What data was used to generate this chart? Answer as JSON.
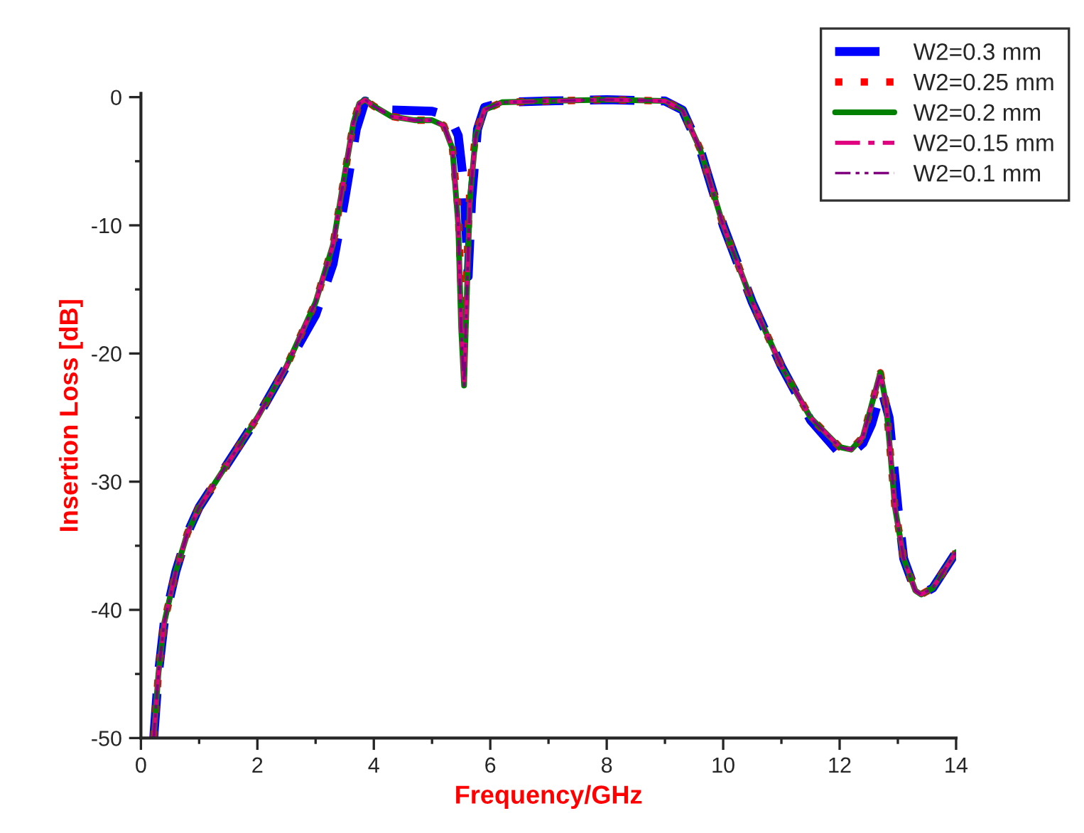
{
  "chart_data": {
    "type": "line",
    "xlabel": "Frequency/GHz",
    "ylabel": "Insertion Loss [dB]",
    "xlim": [
      0,
      14
    ],
    "ylim": [
      -50,
      0.3
    ],
    "xticks": [
      0,
      2,
      4,
      6,
      8,
      10,
      12,
      14
    ],
    "yticks": [
      -50,
      -40,
      -30,
      -20,
      -10,
      0
    ],
    "grid": false,
    "legend": "top right",
    "marker": "none",
    "series": [
      {
        "name": "W2=0.3 mm",
        "color": "#0000ff",
        "line_style": "dashed",
        "x": [
          0.22,
          0.3,
          0.4,
          0.6,
          0.8,
          1.0,
          1.5,
          2.0,
          2.5,
          3.0,
          3.3,
          3.5,
          3.7,
          3.85,
          4.0,
          4.3,
          5.0,
          5.3,
          5.45,
          5.55,
          5.62,
          5.68,
          5.78,
          5.9,
          6.2,
          7,
          8,
          9,
          9.3,
          9.6,
          10,
          10.5,
          11,
          11.5,
          12,
          12.15,
          12.4,
          12.55,
          12.72,
          12.85,
          13.0,
          13.1,
          13.3,
          13.4,
          13.6,
          14
        ],
        "values": [
          -50,
          -45,
          -41,
          -37,
          -34,
          -32,
          -28.5,
          -25,
          -21,
          -17,
          -13,
          -8,
          -2.5,
          -0.3,
          -0.6,
          -1.0,
          -1.1,
          -1.5,
          -3,
          -7,
          -14,
          -8,
          -2.5,
          -0.8,
          -0.4,
          -0.3,
          -0.2,
          -0.3,
          -1,
          -4,
          -10,
          -16,
          -21,
          -25.2,
          -27.8,
          -28,
          -27,
          -25.5,
          -22.8,
          -25,
          -32,
          -36,
          -38.5,
          -38.8,
          -38.3,
          -35.5
        ]
      },
      {
        "name": "W2=0.25 mm",
        "color": "#ff0000",
        "line_style": "dotted",
        "x": [
          0.22,
          0.3,
          0.4,
          0.6,
          0.8,
          1.0,
          1.5,
          2.0,
          2.5,
          3.0,
          3.3,
          3.5,
          3.65,
          3.75,
          3.85,
          4.0,
          4.3,
          4.7,
          5.0,
          5.2,
          5.35,
          5.45,
          5.5,
          5.55,
          5.6,
          5.65,
          5.75,
          5.9,
          6.2,
          7,
          8,
          9,
          9.3,
          9.6,
          10,
          10.5,
          11,
          11.5,
          12,
          12.2,
          12.4,
          12.55,
          12.7,
          12.8,
          12.95,
          13.1,
          13.3,
          13.4,
          13.6,
          14
        ],
        "values": [
          -50,
          -45,
          -41,
          -37,
          -34,
          -32,
          -28.5,
          -25,
          -21,
          -16,
          -11.5,
          -6,
          -2,
          -0.5,
          -0.2,
          -0.7,
          -1.5,
          -1.8,
          -1.8,
          -2.2,
          -4,
          -9,
          -15,
          -18,
          -13,
          -7,
          -2.8,
          -1,
          -0.4,
          -0.3,
          -0.2,
          -0.3,
          -1,
          -4,
          -10,
          -16,
          -21,
          -25,
          -27.3,
          -27.5,
          -26.5,
          -24,
          -21.5,
          -24,
          -32,
          -36,
          -38.5,
          -38.8,
          -38.3,
          -35.5
        ]
      },
      {
        "name": "W2=0.2 mm",
        "color": "#008000",
        "line_style": "solid",
        "x": [
          0.22,
          0.3,
          0.4,
          0.6,
          0.8,
          1.0,
          1.5,
          2.0,
          2.5,
          3.0,
          3.3,
          3.5,
          3.65,
          3.75,
          3.85,
          4.0,
          4.3,
          4.7,
          5.0,
          5.2,
          5.35,
          5.45,
          5.5,
          5.55,
          5.6,
          5.65,
          5.75,
          5.9,
          6.2,
          7,
          8,
          9,
          9.3,
          9.6,
          10,
          10.5,
          11,
          11.5,
          12,
          12.2,
          12.4,
          12.55,
          12.7,
          12.8,
          12.95,
          13.1,
          13.3,
          13.4,
          13.6,
          14
        ],
        "values": [
          -50,
          -45,
          -41,
          -37,
          -34,
          -32,
          -28.5,
          -25,
          -21,
          -16,
          -11.5,
          -6,
          -2,
          -0.5,
          -0.2,
          -0.7,
          -1.5,
          -1.8,
          -1.8,
          -2.2,
          -4,
          -10,
          -18,
          -22.5,
          -15,
          -8,
          -3,
          -1,
          -0.4,
          -0.3,
          -0.2,
          -0.3,
          -1,
          -4,
          -10,
          -16,
          -21,
          -25,
          -27.3,
          -27.5,
          -26.5,
          -24,
          -21.5,
          -24,
          -32,
          -36,
          -38.5,
          -38.8,
          -38.3,
          -35.5
        ]
      },
      {
        "name": "W2=0.15 mm",
        "color": "#e0007f",
        "line_style": "dashdot",
        "x": [
          0.22,
          0.3,
          0.4,
          0.6,
          0.8,
          1.0,
          1.5,
          2.0,
          2.5,
          3.0,
          3.3,
          3.5,
          3.65,
          3.75,
          3.85,
          4.0,
          4.3,
          4.7,
          5.0,
          5.2,
          5.35,
          5.45,
          5.5,
          5.55,
          5.6,
          5.65,
          5.75,
          5.9,
          6.2,
          7,
          8,
          9,
          9.3,
          9.6,
          10,
          10.5,
          11,
          11.5,
          12,
          12.2,
          12.4,
          12.55,
          12.7,
          12.8,
          12.95,
          13.1,
          13.3,
          13.4,
          13.6,
          14
        ],
        "values": [
          -50,
          -45,
          -41,
          -37,
          -34,
          -32,
          -28.5,
          -25,
          -21,
          -16,
          -11.5,
          -6,
          -2,
          -0.5,
          -0.2,
          -0.7,
          -1.5,
          -1.8,
          -1.8,
          -2.2,
          -4,
          -10,
          -18,
          -22.5,
          -15,
          -8,
          -3,
          -1,
          -0.4,
          -0.3,
          -0.2,
          -0.3,
          -1,
          -4,
          -10,
          -16,
          -21,
          -25,
          -27.3,
          -27.5,
          -26.5,
          -24,
          -21.5,
          -24,
          -32,
          -36,
          -38.5,
          -38.8,
          -38.3,
          -35.5
        ]
      },
      {
        "name": "W2=0.1 mm",
        "color": "#800080",
        "line_style": "dashdotdot",
        "x": [
          0.22,
          0.3,
          0.4,
          0.6,
          0.8,
          1.0,
          1.5,
          2.0,
          2.5,
          3.0,
          3.3,
          3.5,
          3.65,
          3.75,
          3.85,
          4.0,
          4.3,
          4.7,
          5.0,
          5.2,
          5.35,
          5.45,
          5.5,
          5.55,
          5.6,
          5.65,
          5.75,
          5.9,
          6.2,
          7,
          8,
          9,
          9.3,
          9.6,
          10,
          10.5,
          11,
          11.5,
          12,
          12.2,
          12.4,
          12.55,
          12.7,
          12.8,
          12.95,
          13.1,
          13.3,
          13.4,
          13.6,
          14
        ],
        "values": [
          -50,
          -45,
          -41,
          -37,
          -34,
          -32,
          -28.5,
          -25,
          -21,
          -16,
          -11.5,
          -6,
          -2,
          -0.5,
          -0.2,
          -0.7,
          -1.5,
          -1.8,
          -1.8,
          -2.2,
          -4,
          -10,
          -18,
          -22.5,
          -15,
          -8,
          -3,
          -1,
          -0.4,
          -0.3,
          -0.2,
          -0.3,
          -1,
          -4,
          -10,
          -16,
          -21,
          -25,
          -27.3,
          -27.5,
          -26.5,
          -24,
          -21.5,
          -24,
          -32,
          -36,
          -38.5,
          -38.8,
          -38.3,
          -35.5
        ]
      }
    ]
  }
}
